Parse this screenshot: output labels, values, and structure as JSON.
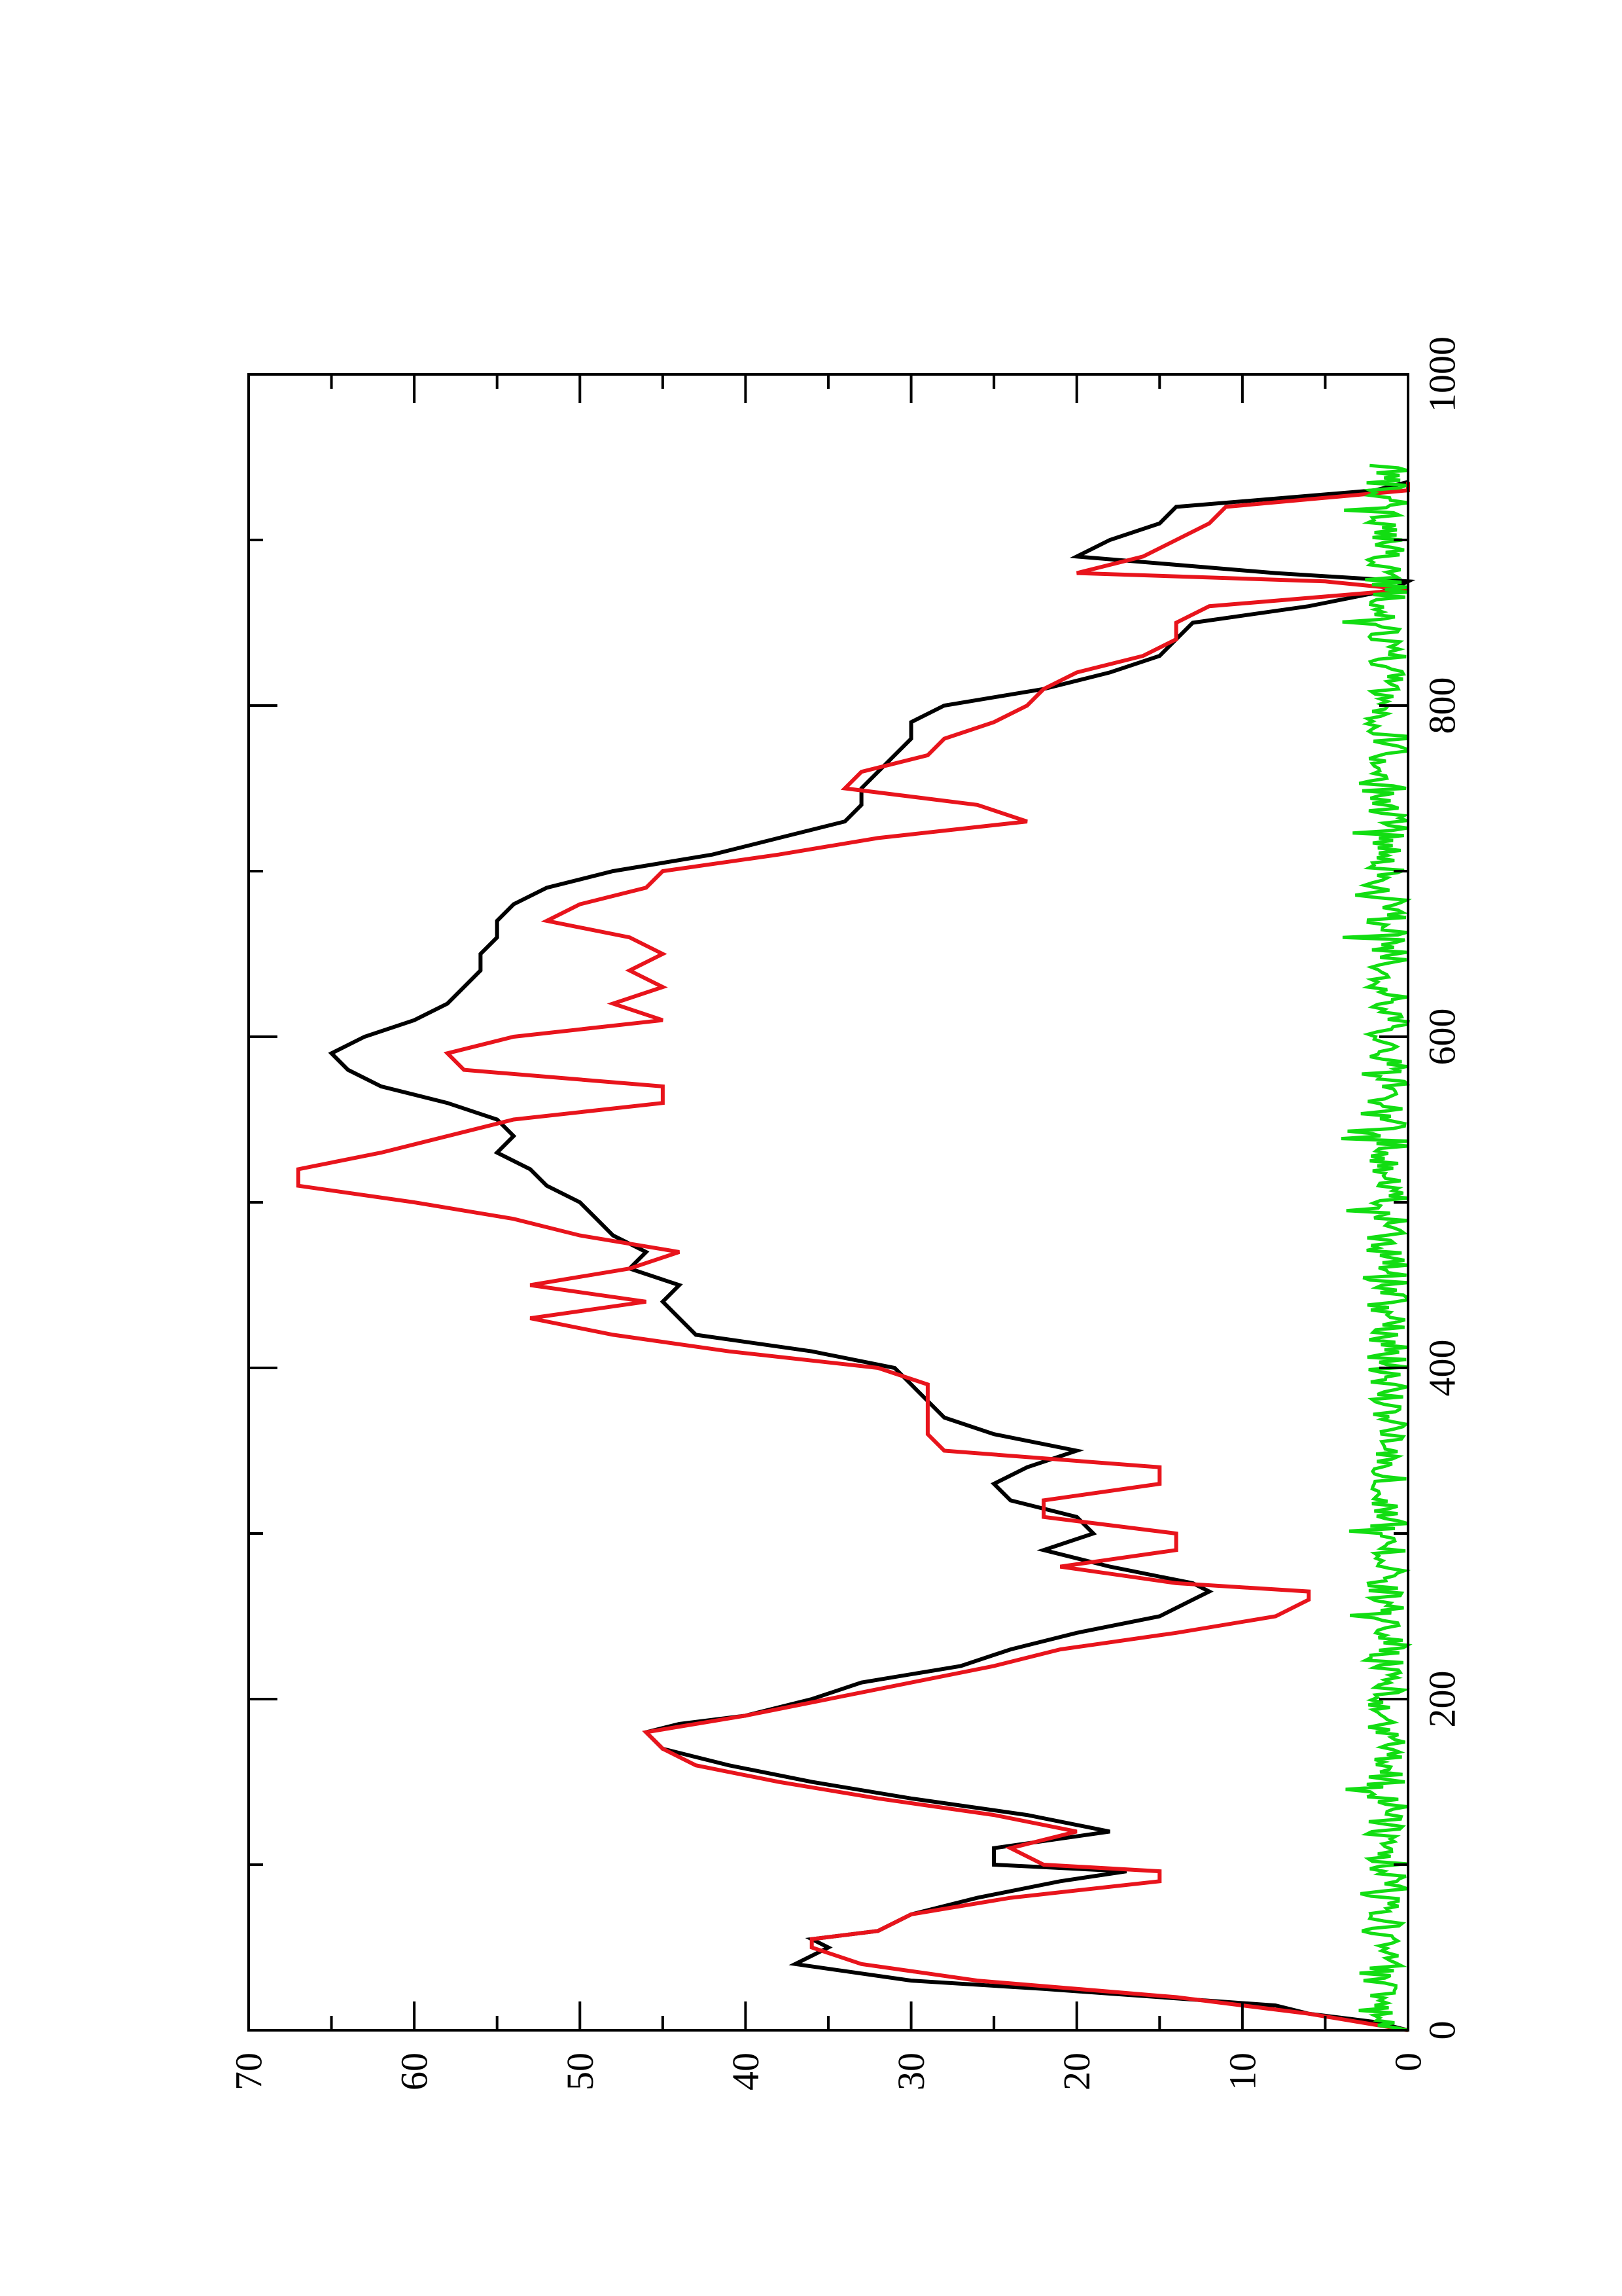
{
  "chart_data": {
    "type": "line",
    "orientation": "rotated-90-ccw",
    "title": "",
    "xlabel": "",
    "ylabel": "",
    "xlim": [
      0,
      1000
    ],
    "ylim": [
      0,
      70
    ],
    "x_ticks": [
      0,
      200,
      400,
      600,
      800,
      1000
    ],
    "x_tick_labels": [
      "0",
      "200",
      "400",
      "600",
      "800",
      "1000"
    ],
    "x_minor_ticks": [
      100,
      300,
      500,
      700,
      900
    ],
    "y_ticks": [
      0,
      10,
      20,
      30,
      40,
      50,
      60,
      70
    ],
    "y_tick_labels": [
      "0",
      "10",
      "20",
      "30",
      "40",
      "50",
      "60",
      "70"
    ],
    "y_minor_ticks": [
      5,
      15,
      25,
      35,
      45,
      55,
      65
    ],
    "grid": false,
    "legend": "none",
    "colors": {
      "black_series": "#000000",
      "red_series": "#e8141c",
      "green_series": "#12dd12",
      "axes": "#000000",
      "background": "#ffffff"
    },
    "series": [
      {
        "color": "#000000",
        "x": [
          0,
          5,
          10,
          15,
          20,
          25,
          30,
          40,
          50,
          55,
          60,
          70,
          80,
          90,
          96,
          100,
          110,
          120,
          130,
          140,
          150,
          160,
          170,
          180,
          185,
          190,
          200,
          210,
          220,
          230,
          240,
          250,
          260,
          265,
          270,
          280,
          290,
          300,
          310,
          320,
          330,
          340,
          350,
          360,
          370,
          380,
          390,
          400,
          410,
          420,
          430,
          440,
          450,
          460,
          470,
          480,
          490,
          500,
          510,
          520,
          530,
          540,
          550,
          560,
          570,
          580,
          590,
          600,
          610,
          620,
          630,
          640,
          650,
          660,
          670,
          680,
          690,
          700,
          710,
          720,
          730,
          740,
          750,
          760,
          770,
          780,
          790,
          800,
          810,
          820,
          830,
          840,
          850,
          860,
          870,
          875,
          880,
          890,
          900,
          910,
          920,
          930,
          935
        ],
        "y": [
          0,
          2,
          6,
          8,
          15,
          22,
          30,
          37,
          35,
          36,
          32,
          30,
          26,
          21,
          17,
          25,
          25,
          18,
          23,
          30,
          36,
          41,
          45,
          46,
          44,
          40,
          36,
          33,
          27,
          24,
          20,
          15,
          13,
          12,
          13,
          18,
          22,
          19,
          20,
          24,
          25,
          23,
          20,
          25,
          28,
          29,
          30,
          31,
          36,
          43,
          44,
          45,
          44,
          47,
          46,
          48,
          49,
          50,
          52,
          53,
          55,
          54,
          55,
          58,
          62,
          64,
          65,
          63,
          60,
          58,
          57,
          56,
          56,
          55,
          55,
          54,
          52,
          48,
          42,
          38,
          34,
          33,
          33,
          32,
          31,
          30,
          30,
          28,
          22,
          18,
          15,
          14,
          13,
          6,
          1,
          0,
          8,
          20,
          18,
          15,
          14,
          2,
          0
        ]
      },
      {
        "color": "#e8141c",
        "x": [
          0,
          5,
          10,
          20,
          30,
          40,
          50,
          55,
          60,
          70,
          80,
          90,
          96,
          100,
          110,
          120,
          130,
          140,
          150,
          160,
          170,
          180,
          185,
          190,
          200,
          210,
          220,
          230,
          240,
          250,
          260,
          265,
          270,
          280,
          290,
          300,
          310,
          320,
          330,
          340,
          350,
          360,
          370,
          380,
          390,
          400,
          410,
          420,
          430,
          440,
          450,
          460,
          470,
          480,
          490,
          500,
          510,
          520,
          530,
          540,
          550,
          560,
          570,
          580,
          590,
          600,
          610,
          620,
          630,
          640,
          650,
          660,
          670,
          680,
          690,
          700,
          710,
          720,
          730,
          740,
          750,
          760,
          770,
          780,
          790,
          800,
          810,
          820,
          830,
          840,
          850,
          860,
          870,
          875,
          880,
          890,
          900,
          910,
          920,
          930,
          935
        ],
        "y": [
          0,
          3,
          6,
          14,
          26,
          33,
          36,
          36,
          32,
          30,
          24,
          15,
          15,
          22,
          24,
          20,
          25,
          32,
          38,
          43,
          45,
          46,
          43,
          40,
          35,
          30,
          25,
          21,
          14,
          8,
          6,
          6,
          14,
          21,
          14,
          14,
          22,
          22,
          15,
          15,
          28,
          29,
          29,
          29,
          29,
          32,
          41,
          48,
          53,
          46,
          53,
          47,
          44,
          50,
          54,
          60,
          67,
          67,
          62,
          58,
          54,
          45,
          45,
          57,
          58,
          54,
          45,
          48,
          45,
          47,
          45,
          47,
          52,
          50,
          46,
          45,
          38,
          32,
          23,
          26,
          34,
          33,
          29,
          28,
          25,
          23,
          22,
          20,
          16,
          14,
          14,
          12,
          0,
          5,
          20,
          16,
          14,
          12,
          11,
          0,
          0
        ]
      },
      {
        "color": "#12dd12",
        "x": [
          0,
          1000
        ],
        "y": [
          0,
          0
        ],
        "note_free": true,
        "noise_amplitude": 2.5,
        "noise_range": [
          0,
          945
        ]
      }
    ]
  }
}
